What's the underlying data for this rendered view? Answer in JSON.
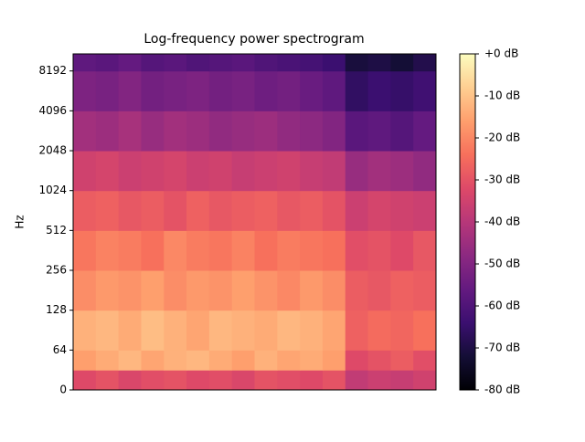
{
  "chart_data": {
    "type": "spectrogram",
    "title": "Log-frequency power spectrogram",
    "ylabel": "Hz",
    "y_scale": "symlog",
    "linthresh": 64,
    "log_base": 2,
    "ylim": [
      0,
      11025
    ],
    "yticks": [
      0,
      64,
      128,
      256,
      512,
      1024,
      2048,
      4096,
      8192
    ],
    "y_edges": [
      0,
      32,
      64,
      128,
      256,
      512,
      1024,
      2048,
      4096,
      8192,
      11025
    ],
    "colormap": "magma",
    "clim": [
      -80,
      0
    ],
    "cticks": [
      {
        "value": 0,
        "label": "+0 dB"
      },
      {
        "value": -10,
        "label": "-10 dB"
      },
      {
        "value": -20,
        "label": "-20 dB"
      },
      {
        "value": -30,
        "label": "-30 dB"
      },
      {
        "value": -40,
        "label": "-40 dB"
      },
      {
        "value": -50,
        "label": "-50 dB"
      },
      {
        "value": -60,
        "label": "-60 dB"
      },
      {
        "value": -70,
        "label": "-70 dB"
      },
      {
        "value": -80,
        "label": "-80 dB"
      }
    ],
    "z": [
      [
        -32,
        -30,
        -33,
        -31,
        -30,
        -32,
        -31,
        -33,
        -30,
        -31,
        -32,
        -30,
        -38,
        -36,
        -37,
        -35
      ],
      [
        -16,
        -14,
        -12,
        -15,
        -13,
        -12,
        -14,
        -16,
        -13,
        -15,
        -14,
        -16,
        -32,
        -30,
        -28,
        -31
      ],
      [
        -13,
        -12,
        -14,
        -11,
        -13,
        -15,
        -12,
        -13,
        -14,
        -12,
        -13,
        -15,
        -27,
        -25,
        -26,
        -24
      ],
      [
        -19,
        -17,
        -18,
        -16,
        -19,
        -17,
        -18,
        -16,
        -18,
        -20,
        -17,
        -19,
        -28,
        -29,
        -27,
        -28
      ],
      [
        -23,
        -21,
        -22,
        -24,
        -20,
        -22,
        -23,
        -21,
        -24,
        -22,
        -23,
        -24,
        -31,
        -30,
        -32,
        -29
      ],
      [
        -28,
        -27,
        -29,
        -28,
        -30,
        -27,
        -29,
        -28,
        -27,
        -29,
        -28,
        -30,
        -36,
        -34,
        -35,
        -36
      ],
      [
        -35,
        -34,
        -36,
        -35,
        -34,
        -36,
        -35,
        -37,
        -36,
        -35,
        -37,
        -38,
        -46,
        -44,
        -45,
        -47
      ],
      [
        -44,
        -45,
        -43,
        -46,
        -44,
        -45,
        -47,
        -46,
        -45,
        -47,
        -48,
        -50,
        -58,
        -57,
        -59,
        -56
      ],
      [
        -51,
        -52,
        -50,
        -53,
        -52,
        -51,
        -53,
        -52,
        -54,
        -53,
        -55,
        -57,
        -66,
        -64,
        -65,
        -63
      ],
      [
        -57,
        -58,
        -56,
        -59,
        -58,
        -60,
        -59,
        -58,
        -60,
        -61,
        -62,
        -64,
        -71,
        -70,
        -72,
        -69
      ]
    ]
  }
}
